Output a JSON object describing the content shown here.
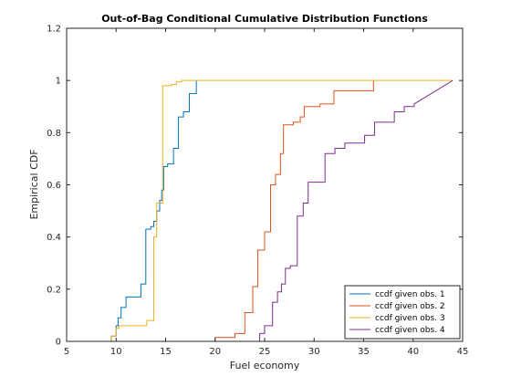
{
  "chart_data": {
    "type": "line",
    "title": "Out-of-Bag Conditional Cumulative Distribution Functions",
    "xlabel": "Fuel economy",
    "ylabel": "Empirical CDF",
    "xlim": [
      5,
      45
    ],
    "ylim": [
      0,
      1.2
    ],
    "xticks": [
      5,
      10,
      15,
      20,
      25,
      30,
      35,
      40,
      45
    ],
    "yticks": [
      0,
      0.2,
      0.4,
      0.6,
      0.8,
      1,
      1.2
    ],
    "xtick_labels": [
      "5",
      "10",
      "15",
      "20",
      "25",
      "30",
      "35",
      "40",
      "45"
    ],
    "ytick_labels": [
      "0",
      "0.2",
      "0.4",
      "0.6",
      "0.8",
      "1",
      "1.2"
    ],
    "grid": false,
    "legend_position": "bottom-right",
    "series": [
      {
        "name": "ccdf given obs. 1",
        "color": "#0072BD",
        "x": [
          9,
          9.5,
          9.5,
          10,
          10,
          10.2,
          10.2,
          10.5,
          10.5,
          11,
          11,
          12.5,
          12.5,
          13,
          13,
          13.5,
          13.5,
          13.8,
          13.8,
          14.1,
          14.1,
          14.4,
          14.4,
          14.6,
          14.6,
          14.8,
          14.8,
          15.2,
          15.2,
          15.8,
          15.8,
          16.3,
          16.3,
          16.8,
          16.8,
          17.4,
          17.4,
          18.1,
          18.1
        ],
        "y": [
          0,
          0,
          0.02,
          0.02,
          0.06,
          0.06,
          0.09,
          0.09,
          0.13,
          0.13,
          0.17,
          0.17,
          0.22,
          0.22,
          0.43,
          0.43,
          0.44,
          0.44,
          0.46,
          0.46,
          0.5,
          0.5,
          0.54,
          0.54,
          0.58,
          0.58,
          0.67,
          0.67,
          0.68,
          0.68,
          0.74,
          0.74,
          0.86,
          0.86,
          0.88,
          0.88,
          0.95,
          0.95,
          1
        ]
      },
      {
        "name": "ccdf given obs. 2",
        "color": "#D95319",
        "x": [
          18,
          20,
          20,
          22,
          22,
          23,
          23,
          23.8,
          23.8,
          24.3,
          24.3,
          25,
          25,
          25.6,
          25.6,
          26.1,
          26.1,
          26.6,
          26.6,
          26.9,
          26.9,
          27.9,
          27.9,
          28.6,
          28.6,
          29,
          29,
          30.6,
          30.6,
          32,
          32,
          34,
          34,
          36,
          36
        ],
        "y": [
          0,
          0,
          0.015,
          0.015,
          0.03,
          0.03,
          0.11,
          0.11,
          0.21,
          0.21,
          0.35,
          0.35,
          0.42,
          0.42,
          0.6,
          0.6,
          0.64,
          0.64,
          0.72,
          0.72,
          0.83,
          0.83,
          0.84,
          0.84,
          0.86,
          0.86,
          0.9,
          0.9,
          0.91,
          0.91,
          0.96,
          0.96,
          0.96,
          0.96,
          1
        ]
      },
      {
        "name": "ccdf given obs. 3",
        "color": "#EDB120",
        "x": [
          9,
          9.5,
          9.5,
          10,
          10,
          10.3,
          10.3,
          13.1,
          13.1,
          13.8,
          13.8,
          14.1,
          14.1,
          14.7,
          14.7,
          15.6,
          15.6,
          16.1,
          16.1,
          16.6,
          16.6,
          17.2,
          17.2,
          44
        ],
        "y": [
          0,
          0,
          0.02,
          0.02,
          0.05,
          0.05,
          0.06,
          0.06,
          0.08,
          0.08,
          0.4,
          0.4,
          0.53,
          0.53,
          0.98,
          0.98,
          0.985,
          0.985,
          0.995,
          0.995,
          1,
          1,
          1,
          1
        ]
      },
      {
        "name": "ccdf given obs. 4",
        "color": "#7E2F8E",
        "x": [
          24,
          24.5,
          24.5,
          25,
          25,
          25.8,
          25.8,
          26.3,
          26.3,
          26.7,
          26.7,
          27.1,
          27.1,
          27.6,
          27.6,
          28.3,
          28.3,
          28.9,
          28.9,
          29.4,
          29.4,
          30.1,
          30.1,
          31.1,
          31.1,
          32.1,
          32.1,
          33.1,
          33.1,
          34.1,
          34.1,
          35.1,
          35.1,
          36.1,
          36.1,
          37.1,
          37.1,
          38.1,
          38.1,
          39.1,
          39.1,
          40.1,
          40.1,
          44
        ],
        "y": [
          0,
          0,
          0.03,
          0.03,
          0.06,
          0.06,
          0.15,
          0.15,
          0.19,
          0.19,
          0.22,
          0.22,
          0.28,
          0.28,
          0.29,
          0.29,
          0.48,
          0.48,
          0.53,
          0.53,
          0.61,
          0.61,
          0.61,
          0.61,
          0.72,
          0.72,
          0.74,
          0.74,
          0.76,
          0.76,
          0.76,
          0.76,
          0.79,
          0.79,
          0.84,
          0.84,
          0.84,
          0.84,
          0.88,
          0.88,
          0.9,
          0.9,
          0.91,
          1
        ]
      }
    ]
  }
}
